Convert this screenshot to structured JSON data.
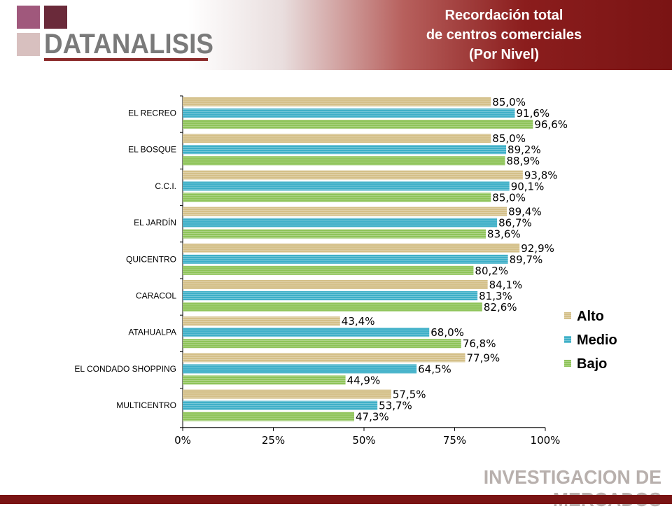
{
  "brand": {
    "name": "DATANALISIS",
    "square_colors": [
      "#a0587c",
      "#6a2a3a",
      "#d8c0bf"
    ]
  },
  "title": {
    "line1": "Recordación total",
    "line2": "de centros comerciales",
    "line3": "(Por Nivel)"
  },
  "footer": {
    "text": "INVESTIGACION DE MERCADOS"
  },
  "chart_data": {
    "type": "bar",
    "orientation": "horizontal",
    "categories": [
      "EL RECREO",
      "EL BOSQUE",
      "C.C.I.",
      "EL JARDÍN",
      "QUICENTRO",
      "CARACOL",
      "ATAHUALPA",
      "EL CONDADO SHOPPING",
      "MULTICENTRO"
    ],
    "series": [
      {
        "name": "Alto",
        "color": "#d4c089",
        "values": [
          85.0,
          85.0,
          93.8,
          89.4,
          92.9,
          84.1,
          43.4,
          77.9,
          57.5
        ]
      },
      {
        "name": "Medio",
        "color": "#3fb0c8",
        "values": [
          91.6,
          89.2,
          90.1,
          86.7,
          89.7,
          81.3,
          68.0,
          64.5,
          53.7
        ]
      },
      {
        "name": "Bajo",
        "color": "#8fc45a",
        "values": [
          96.6,
          88.9,
          85.0,
          83.6,
          80.2,
          82.6,
          76.8,
          44.9,
          47.3
        ]
      }
    ],
    "data_labels": [
      [
        "85,0%",
        "91,6%",
        "96,6%"
      ],
      [
        "85,0%",
        "89,2%",
        "88,9%"
      ],
      [
        "93,8%",
        "90,1%",
        "85,0%"
      ],
      [
        "89,4%",
        "86,7%",
        "83,6%"
      ],
      [
        "92,9%",
        "89,7%",
        "80,2%"
      ],
      [
        "84,1%",
        "81,3%",
        "82,6%"
      ],
      [
        "43,4%",
        "68,0%",
        "76,8%"
      ],
      [
        "77,9%",
        "64,5%",
        "44,9%"
      ],
      [
        "57,5%",
        "53,7%",
        "47,3%"
      ]
    ],
    "x_ticks": [
      "0%",
      "25%",
      "50%",
      "75%",
      "100%"
    ],
    "x_tick_values": [
      0,
      25,
      50,
      75,
      100
    ],
    "xlim": [
      0,
      100
    ],
    "legend_position": "right",
    "grid": false
  }
}
